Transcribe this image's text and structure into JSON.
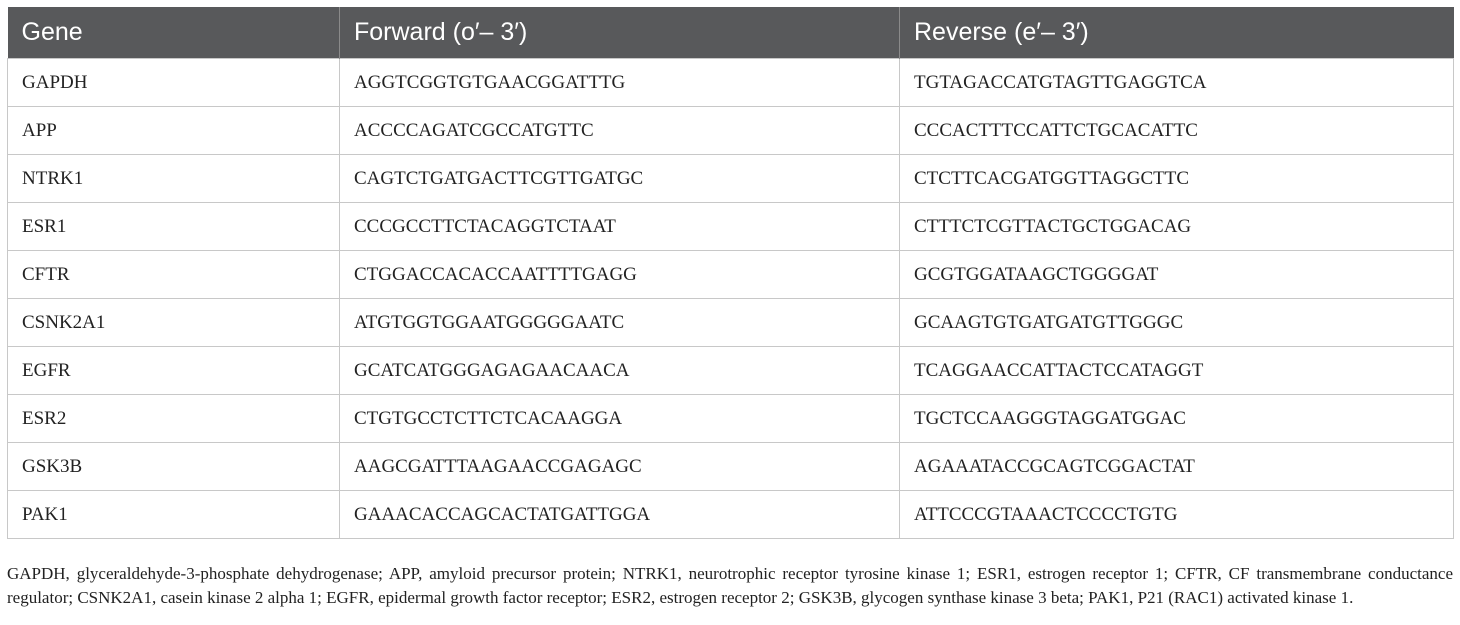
{
  "table": {
    "headers": [
      "Gene",
      "Forward (o′– 3′)",
      "Reverse (e′– 3′)"
    ],
    "rows": [
      [
        "GAPDH",
        "AGGTCGGTGTGAACGGATTTG",
        "TGTAGACCATGTAGTTGAGGTCA"
      ],
      [
        "APP",
        "ACCCCAGATCGCCATGTTC",
        "CCCACTTTCCATTCTGCACATTC"
      ],
      [
        "NTRK1",
        "CAGTCTGATGACTTCGTTGATGC",
        "CTCTTCACGATGGTTAGGCTTC"
      ],
      [
        "ESR1",
        "CCCGCCTTCTACAGGTCTAAT",
        "CTTTCTCGTTACTGCTGGACAG"
      ],
      [
        "CFTR",
        "CTGGACCACACCAATTTTGAGG",
        "GCGTGGATAAGCTGGGGAT"
      ],
      [
        "CSNK2A1",
        "ATGTGGTGGAATGGGGGAATC",
        "GCAAGTGTGATGATGTTGGGC"
      ],
      [
        "EGFR",
        "GCATCATGGGAGAGAACAACA",
        "TCAGGAACCATTACTCCATAGGT"
      ],
      [
        "ESR2",
        "CTGTGCCTCTTCTCACAAGGA",
        "TGCTCCAAGGGTAGGATGGAC"
      ],
      [
        "GSK3B",
        "AAGCGATTTAAGAACCGAGAGC",
        "AGAAATACCGCAGTCGGACTAT"
      ],
      [
        "PAK1",
        "GAAACACCAGCACTATGATTGGA",
        "ATTCCCGTAAACTCCCCTGTG"
      ]
    ]
  },
  "footnote": "GAPDH, glyceraldehyde-3-phosphate dehydrogenase; APP, amyloid precursor protein; NTRK1, neurotrophic receptor tyrosine kinase 1; ESR1, estrogen receptor 1; CFTR, CF transmembrane conductance regulator; CSNK2A1, casein kinase 2 alpha 1; EGFR, epidermal growth factor receptor; ESR2, estrogen receptor 2; GSK3B, glycogen synthase kinase 3 beta; PAK1, P21 (RAC1) activated kinase 1.",
  "colors": {
    "header_bg": "#58595b",
    "header_text": "#ffffff",
    "grid_line": "#c8c8c8"
  }
}
